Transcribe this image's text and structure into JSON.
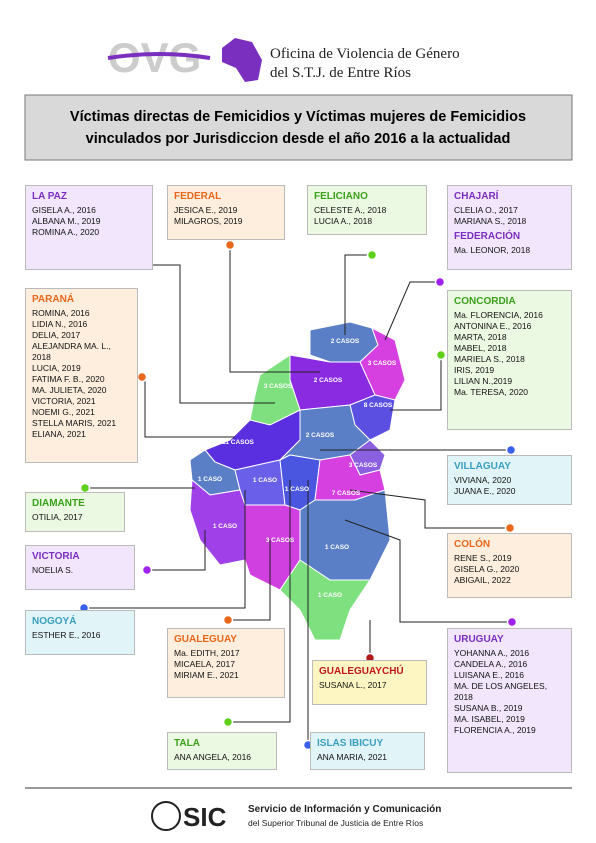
{
  "header": {
    "logo": "OVG",
    "org_lines": [
      "Oficina de Violencia de Género",
      "del S.T.J. de Entre Ríos"
    ]
  },
  "title_lines": [
    "Víctimas directas de Femicidios y Víctimas mujeres de Femicidios",
    "vinculados por Jurisdiccion desde el año 2016 a la actualidad"
  ],
  "boxes": [
    {
      "sections": [
        {
          "title": "LA PAZ",
          "victims": [
            "GISELA A., 2016",
            "ALBANA M., 2019",
            "ROMINA A., 2020"
          ]
        }
      ]
    },
    {
      "sections": [
        {
          "title": "FEDERAL",
          "victims": [
            "JESICA E., 2019",
            "MILAGROS, 2019"
          ]
        }
      ]
    },
    {
      "sections": [
        {
          "title": "FELICIANO",
          "victims": [
            "CELESTE A., 2018",
            "LUCIA A., 2018"
          ]
        }
      ]
    },
    {
      "sections": [
        {
          "title": "CHAJARÍ",
          "victims": [
            "CLELIA O., 2017",
            "MARIANA S., 2018"
          ]
        },
        {
          "title": "FEDERACIÓN",
          "victims": [
            "Ma. LEONOR, 2018"
          ]
        }
      ]
    },
    {
      "sections": [
        {
          "title": "PARANÁ",
          "victims": [
            "ROMINA, 2016",
            "LIDIA N., 2016",
            "DELIA, 2017",
            "ALEJANDRA MA. L., 2018",
            "LUCIA, 2019",
            "FATIMA F. B., 2020",
            "MA. JULIETA, 2020",
            "VICTORIA, 2021",
            "NOEMI G., 2021",
            "STELLA MARIS, 2021",
            "ELIANA, 2021"
          ]
        }
      ]
    },
    {
      "sections": [
        {
          "title": "CONCORDIA",
          "victims": [
            "Ma. FLORENCIA, 2016",
            "ANTONINA E., 2016",
            "MARTA, 2018",
            "MABEL, 2018",
            "MARIELA S., 2018",
            "IRIS, 2019",
            "LILIAN N.,2019",
            "Ma. TERESA, 2020"
          ]
        }
      ]
    },
    {
      "sections": [
        {
          "title": "VILLAGUAY",
          "victims": [
            "VIVIANA, 2020",
            "JUANA E., 2020"
          ]
        }
      ]
    },
    {
      "sections": [
        {
          "title": "DIAMANTE",
          "victims": [
            "OTILIA, 2017"
          ]
        }
      ]
    },
    {
      "sections": [
        {
          "title": "VICTORIA",
          "victims": [
            "NOELIA S."
          ]
        }
      ]
    },
    {
      "sections": [
        {
          "title": "COLÓN",
          "victims": [
            "RENE S., 2019",
            "GISELA G., 2020",
            "ABIGAIL, 2022"
          ]
        }
      ]
    },
    {
      "sections": [
        {
          "title": "NOGOYÁ",
          "victims": [
            "ESTHER E., 2016"
          ]
        }
      ]
    },
    {
      "sections": [
        {
          "title": "URUGUAY",
          "victims": [
            "YOHANNA A., 2016",
            "CANDELA A., 2016",
            "LUISANA E., 2016",
            "MA. DE LOS ANGELES, 2018",
            "SUSANA B., 2019",
            "MA. ISABEL, 2019",
            "FLORENCIA A., 2019"
          ]
        }
      ]
    },
    {
      "sections": [
        {
          "title": "GUALEGUAY",
          "victims": [
            "Ma. EDITH, 2017",
            "MICAELA, 2017",
            "MIRIAM E., 2021"
          ]
        }
      ]
    },
    {
      "sections": [
        {
          "title": "GUALEGUAYCHÚ",
          "victims": [
            "SUSANA L., 2017"
          ]
        }
      ]
    },
    {
      "sections": [
        {
          "title": "TALA",
          "victims": [
            "ANA ANGELA, 2016"
          ]
        }
      ]
    },
    {
      "sections": [
        {
          "title": "ISLAS IBICUY",
          "victims": [
            "ANA MARIA, 2021"
          ]
        }
      ]
    }
  ],
  "map_labels": [
    "2 CASOS",
    "3 CASOS",
    "2 CASOS",
    "3 CASOS",
    "8 CASOS",
    "11 CASOS",
    "2 CASOS",
    "3 CASOS",
    "1 CASO",
    "1 CASO",
    "1 CASO",
    "7 CASOS",
    "1 CASO",
    "3 CASOS",
    "1 CASO",
    "1 CASO"
  ],
  "footer": {
    "logo": "SIC",
    "lines": [
      "Servicio de Información y Comunicación",
      "del Superior Tribunal de Justicia de Entre Ríos"
    ]
  }
}
